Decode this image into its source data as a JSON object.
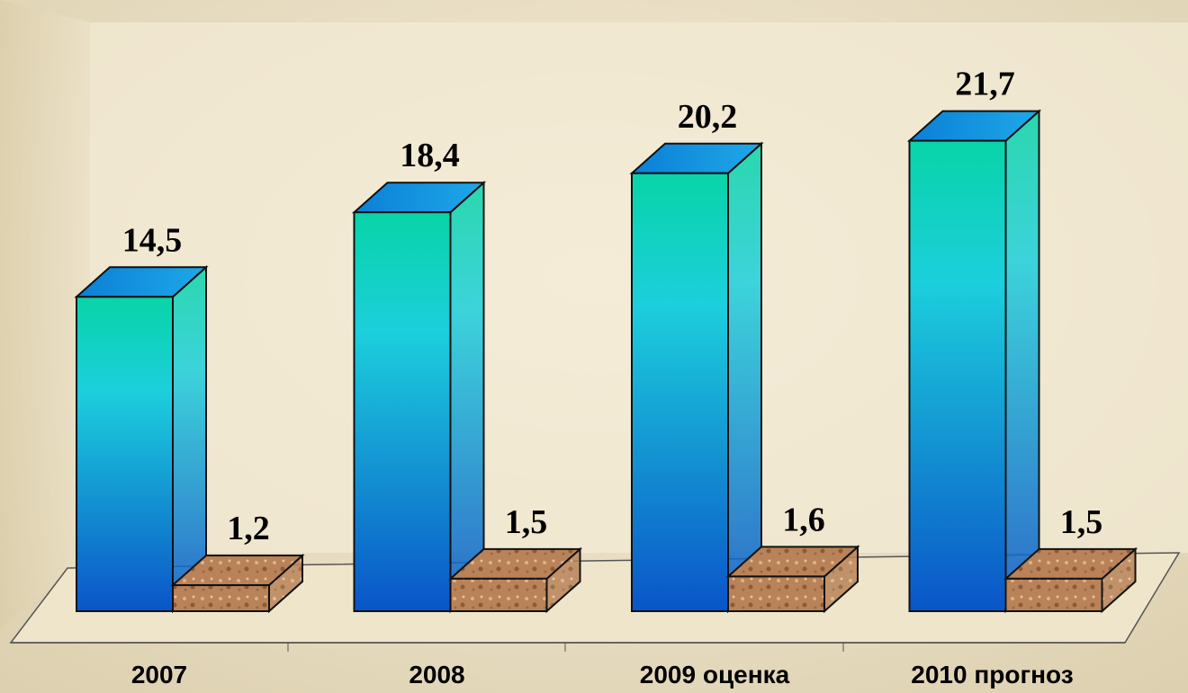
{
  "chart_data": {
    "type": "bar3d",
    "categories": [
      "2007",
      "2008",
      "2009 оценка",
      "2010 прогноз"
    ],
    "series": [
      {
        "color": "#1ccfdc",
        "values": [
          14.5,
          18.4,
          20.2,
          21.7
        ],
        "value_labels": [
          "14,5",
          "18,4",
          "20,2",
          "21,7"
        ]
      },
      {
        "color": "#b98258",
        "values": [
          1.2,
          1.5,
          1.6,
          1.5
        ],
        "value_labels": [
          "1,2",
          "1,5",
          "1,6",
          "1,5"
        ]
      }
    ],
    "ylim": [
      0,
      25
    ]
  }
}
